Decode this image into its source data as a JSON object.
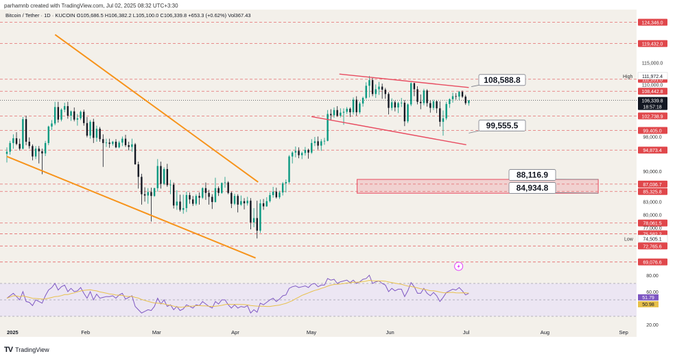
{
  "header_text": "parhamnb created with TradingView.com, Jul 02, 2025 08:32 UTC+3:30",
  "legend_text": "Bitcoin / Tether · 1D · KUCOIN  O105,686.5  H106,382.2  L105,100.0  C106,339.8  +653.3 (+0.62%)  Vol367.43",
  "footer_text": "TradingView",
  "colors": {
    "bg": "#f3f0ea",
    "up": "#089981",
    "down": "#131722",
    "level": "#e0474b",
    "orange": "#f7931a",
    "channel_red": "#e84a5f",
    "rsi": "#7e57c2",
    "rsi_ma": "#e8c04a"
  },
  "chart_data": {
    "type": "candlestick",
    "symbol": "Bitcoin / Tether",
    "timeframe": "1D",
    "exchange": "KUCOIN",
    "ohlc_last": {
      "open": 105686.5,
      "high": 106382.2,
      "low": 105100.0,
      "close": 106339.8,
      "change": "+653.3 (+0.62%)",
      "volume": 367.43
    },
    "x_labels": [
      "2025",
      "Feb",
      "Mar",
      "Apr",
      "May",
      "Jun",
      "Jul",
      "Aug",
      "Sep"
    ],
    "y_ticks": [
      "115,000.0",
      "110,000.0",
      "98,000.0",
      "90,000.0",
      "83,000.0",
      "80,000.0",
      "77,000.0"
    ],
    "ylim": [
      66500,
      126000
    ],
    "current_price": "106,339.8",
    "countdown": "18:57:18",
    "high_label": "High",
    "high_value": "111,972.4",
    "low_label": "Low",
    "low_value": "74,505.1",
    "levels": [
      124346.0,
      119432.0,
      111201.0,
      108442.8,
      102738.9,
      99405.0,
      94873.4,
      87036.7,
      85325.8,
      78061.5,
      75582.2,
      72765.6,
      69076.6
    ],
    "level_labels": [
      "124,346.0",
      "119,432.0",
      "111,201.0",
      "108,442.8",
      "102,738.9",
      "99,405.0",
      "94,873.4",
      "87,036.7",
      "85,325.8",
      "78,061.5",
      "75,582.2",
      "72,765.6",
      "69,076.6"
    ],
    "callouts": [
      "108,588.8",
      "99,555.5",
      "88,116.9",
      "84,934.8"
    ],
    "candles": [
      [
        94000,
        95500,
        92000,
        94500
      ],
      [
        94500,
        97000,
        93800,
        96500
      ],
      [
        96500,
        98500,
        95200,
        97600
      ],
      [
        97600,
        99000,
        96000,
        96300
      ],
      [
        96300,
        97500,
        94800,
        95200
      ],
      [
        95200,
        102500,
        95000,
        102000
      ],
      [
        102000,
        102800,
        96000,
        96800
      ],
      [
        96800,
        97800,
        95200,
        95800
      ],
      [
        95800,
        96200,
        92500,
        93400
      ],
      [
        93400,
        95800,
        92800,
        95200
      ],
      [
        95200,
        95800,
        91800,
        94600
      ],
      [
        94600,
        95200,
        89300,
        94100
      ],
      [
        94100,
        97000,
        93500,
        96500
      ],
      [
        96500,
        100500,
        96000,
        100300
      ],
      [
        100300,
        101800,
        99500,
        101000
      ],
      [
        101000,
        106000,
        100600,
        104800
      ],
      [
        104800,
        106000,
        101200,
        101900
      ],
      [
        101900,
        104500,
        101500,
        104200
      ],
      [
        104200,
        105800,
        103600,
        105000
      ],
      [
        105000,
        106000,
        102100,
        102800
      ],
      [
        102800,
        104000,
        101600,
        103800
      ],
      [
        103800,
        104700,
        101500,
        101900
      ],
      [
        101900,
        103200,
        100500,
        102200
      ],
      [
        102200,
        104000,
        101800,
        103700
      ],
      [
        103700,
        104200,
        100500,
        101100
      ],
      [
        101100,
        102500,
        97800,
        98200
      ],
      [
        98200,
        101800,
        97500,
        101400
      ],
      [
        101400,
        102100,
        96500,
        97700
      ],
      [
        97700,
        100500,
        96800,
        99800
      ],
      [
        99800,
        100200,
        96800,
        97400
      ],
      [
        97400,
        98500,
        91000,
        96500
      ],
      [
        96500,
        97500,
        95600,
        96600
      ],
      [
        96600,
        97500,
        95400,
        96300
      ],
      [
        96300,
        97000,
        95900,
        96800
      ],
      [
        96800,
        97400,
        95300,
        95500
      ],
      [
        95500,
        97000,
        95300,
        96600
      ],
      [
        96600,
        98000,
        95800,
        97500
      ],
      [
        97500,
        98400,
        95600,
        96000
      ],
      [
        96000,
        96800,
        94800,
        95600
      ],
      [
        95600,
        97500,
        94500,
        96200
      ],
      [
        96200,
        96500,
        91500,
        91600
      ],
      [
        91600,
        92200,
        86000,
        88700
      ],
      [
        88700,
        89400,
        82300,
        84700
      ],
      [
        84700,
        86300,
        83000,
        84400
      ],
      [
        84400,
        86100,
        82500,
        85200
      ],
      [
        85200,
        86200,
        78400,
        84300
      ],
      [
        84300,
        86200,
        84100,
        86100
      ],
      [
        86100,
        92800,
        85300,
        91200
      ],
      [
        91200,
        92200,
        86000,
        87100
      ],
      [
        87100,
        90900,
        86800,
        90500
      ],
      [
        90500,
        91700,
        86400,
        86800
      ],
      [
        86800,
        88000,
        84700,
        86900
      ],
      [
        86900,
        87400,
        81400,
        82100
      ],
      [
        82100,
        85600,
        81100,
        83000
      ],
      [
        83000,
        84600,
        80700,
        81100
      ],
      [
        81100,
        84600,
        80200,
        81500
      ],
      [
        81500,
        85300,
        80600,
        84500
      ],
      [
        84500,
        85100,
        82500,
        83500
      ],
      [
        83500,
        84300,
        82000,
        82500
      ],
      [
        82500,
        84700,
        82100,
        84300
      ],
      [
        84300,
        85100,
        82300,
        83900
      ],
      [
        83900,
        86300,
        83600,
        86100
      ],
      [
        86100,
        87400,
        83400,
        85000
      ],
      [
        85000,
        85700,
        82300,
        84100
      ],
      [
        84100,
        84700,
        81300,
        82900
      ],
      [
        82900,
        88500,
        82800,
        86100
      ],
      [
        86100,
        86500,
        84300,
        85000
      ],
      [
        85000,
        87400,
        84800,
        87300
      ],
      [
        87300,
        88700,
        86200,
        87400
      ],
      [
        87400,
        87700,
        84700,
        85000
      ],
      [
        85000,
        85300,
        81500,
        82500
      ],
      [
        82500,
        84800,
        82200,
        84300
      ],
      [
        84300,
        84700,
        80500,
        82300
      ],
      [
        82300,
        84400,
        82000,
        83100
      ],
      [
        83100,
        83800,
        81200,
        82600
      ],
      [
        82600,
        84100,
        82100,
        83200
      ],
      [
        83200,
        83800,
        76600,
        78200
      ],
      [
        78200,
        81500,
        77100,
        79200
      ],
      [
        79200,
        83200,
        74500,
        76300
      ],
      [
        76300,
        83500,
        75800,
        82600
      ],
      [
        82600,
        83600,
        81100,
        81900
      ],
      [
        81900,
        84000,
        81800,
        83100
      ],
      [
        83100,
        85100,
        82800,
        84500
      ],
      [
        84500,
        86400,
        83900,
        85300
      ],
      [
        85300,
        86200,
        83700,
        84000
      ],
      [
        84000,
        85500,
        83600,
        85100
      ],
      [
        85100,
        87500,
        84400,
        87200
      ],
      [
        87200,
        88100,
        85100,
        87500
      ],
      [
        87500,
        93700,
        87200,
        93400
      ],
      [
        93400,
        94600,
        91800,
        94300
      ],
      [
        94300,
        95700,
        93200,
        94700
      ],
      [
        94700,
        95500,
        93000,
        93700
      ],
      [
        93700,
        94500,
        92800,
        94200
      ],
      [
        94200,
        95600,
        93600,
        94900
      ],
      [
        94900,
        95200,
        92900,
        94300
      ],
      [
        94300,
        97400,
        94000,
        96500
      ],
      [
        96500,
        97900,
        95800,
        96900
      ],
      [
        96900,
        98000,
        95000,
        95900
      ],
      [
        95900,
        97400,
        94700,
        96900
      ],
      [
        96900,
        97700,
        96100,
        97000
      ],
      [
        97000,
        104100,
        96900,
        103200
      ],
      [
        103200,
        104300,
        101700,
        102900
      ],
      [
        102900,
        104700,
        102300,
        104100
      ],
      [
        104100,
        105000,
        102500,
        102800
      ],
      [
        102800,
        104500,
        102400,
        103500
      ],
      [
        103500,
        104500,
        100700,
        103700
      ],
      [
        103700,
        104800,
        103200,
        104400
      ],
      [
        104400,
        104700,
        102500,
        103600
      ],
      [
        103600,
        107000,
        103100,
        106500
      ],
      [
        106500,
        107300,
        102800,
        103600
      ],
      [
        103600,
        106000,
        103200,
        105600
      ],
      [
        105600,
        107200,
        104900,
        106900
      ],
      [
        106900,
        110500,
        106600,
        109700
      ],
      [
        109700,
        111972,
        107000,
        111000
      ],
      [
        111000,
        111500,
        107300,
        107800
      ],
      [
        107800,
        110000,
        106900,
        108900
      ],
      [
        108900,
        110600,
        107600,
        109500
      ],
      [
        109500,
        110200,
        106700,
        108800
      ],
      [
        108800,
        109200,
        106700,
        107800
      ],
      [
        107800,
        108200,
        103100,
        104600
      ],
      [
        104600,
        106800,
        104000,
        105900
      ],
      [
        105900,
        106300,
        103800,
        104700
      ],
      [
        104700,
        106000,
        103400,
        105700
      ],
      [
        105700,
        106900,
        104800,
        105800
      ],
      [
        105800,
        106400,
        100400,
        101500
      ],
      [
        101500,
        105600,
        101100,
        105400
      ],
      [
        105400,
        110500,
        105000,
        110300
      ],
      [
        110300,
        110400,
        107300,
        108900
      ],
      [
        108900,
        109600,
        105400,
        106000
      ],
      [
        106000,
        107700,
        104300,
        105700
      ],
      [
        105700,
        109000,
        105200,
        108600
      ],
      [
        108600,
        108900,
        104900,
        105700
      ],
      [
        105700,
        106300,
        103500,
        104600
      ],
      [
        104600,
        106500,
        104100,
        106100
      ],
      [
        106100,
        106300,
        103400,
        104500
      ],
      [
        104500,
        106100,
        100300,
        101400
      ],
      [
        101400,
        104000,
        98200,
        102200
      ],
      [
        102200,
        106000,
        101800,
        105500
      ],
      [
        105500,
        106800,
        104600,
        106600
      ],
      [
        106600,
        108100,
        105800,
        107300
      ],
      [
        107300,
        108000,
        106500,
        107200
      ],
      [
        107200,
        108500,
        106400,
        108300
      ],
      [
        108300,
        108600,
        106900,
        107200
      ],
      [
        107200,
        107600,
        105300,
        105700
      ],
      [
        105700,
        106382,
        105100,
        106340
      ]
    ],
    "trendlines": [
      {
        "color": "orange",
        "from": [
          "Jan-20",
          121500
        ],
        "to": [
          "Apr-10",
          87500
        ]
      },
      {
        "color": "orange",
        "from": [
          "Jan-01",
          93400
        ],
        "to": [
          "Apr-09",
          70000
        ]
      },
      {
        "color": "red",
        "from": [
          "May-12",
          112400
        ],
        "to": [
          "Jul-02",
          109300
        ]
      },
      {
        "color": "red",
        "from": [
          "May-01",
          102600
        ],
        "to": [
          "Jul-01",
          96100
        ]
      }
    ],
    "zone": {
      "top": 88116.9,
      "bottom": 84934.8
    },
    "rsi": {
      "ticks": [
        "80.00",
        "60.00",
        "20.00"
      ],
      "levels": [
        70,
        50,
        30
      ],
      "value": "51.79",
      "ma_value": "50.98",
      "ylim": [
        20,
        80
      ],
      "values": [
        52,
        55,
        58,
        54,
        50,
        60,
        48,
        47,
        43,
        50,
        48,
        46,
        55,
        62,
        65,
        70,
        62,
        66,
        68,
        60,
        64,
        60,
        61,
        65,
        58,
        52,
        60,
        50,
        57,
        52,
        53,
        54,
        54,
        55,
        52,
        56,
        58,
        51,
        53,
        55,
        42,
        38,
        34,
        36,
        38,
        37,
        42,
        52,
        45,
        50,
        42,
        44,
        38,
        42,
        37,
        39,
        44,
        42,
        40,
        44,
        43,
        48,
        45,
        42,
        40,
        48,
        45,
        50,
        50,
        44,
        40,
        44,
        40,
        42,
        41,
        43,
        34,
        38,
        35,
        46,
        44,
        47,
        50,
        52,
        48,
        51,
        55,
        56,
        64,
        66,
        67,
        65,
        66,
        67,
        65,
        69,
        70,
        66,
        68,
        68,
        76,
        74,
        75,
        70,
        72,
        73,
        74,
        71,
        74,
        70,
        72,
        75,
        76,
        80,
        70,
        72,
        73,
        70,
        68,
        60,
        64,
        61,
        63,
        63,
        54,
        61,
        71,
        66,
        58,
        58,
        64,
        58,
        55,
        59,
        55,
        48,
        53,
        59,
        61,
        63,
        62,
        65,
        61,
        56,
        58
      ]
    }
  }
}
